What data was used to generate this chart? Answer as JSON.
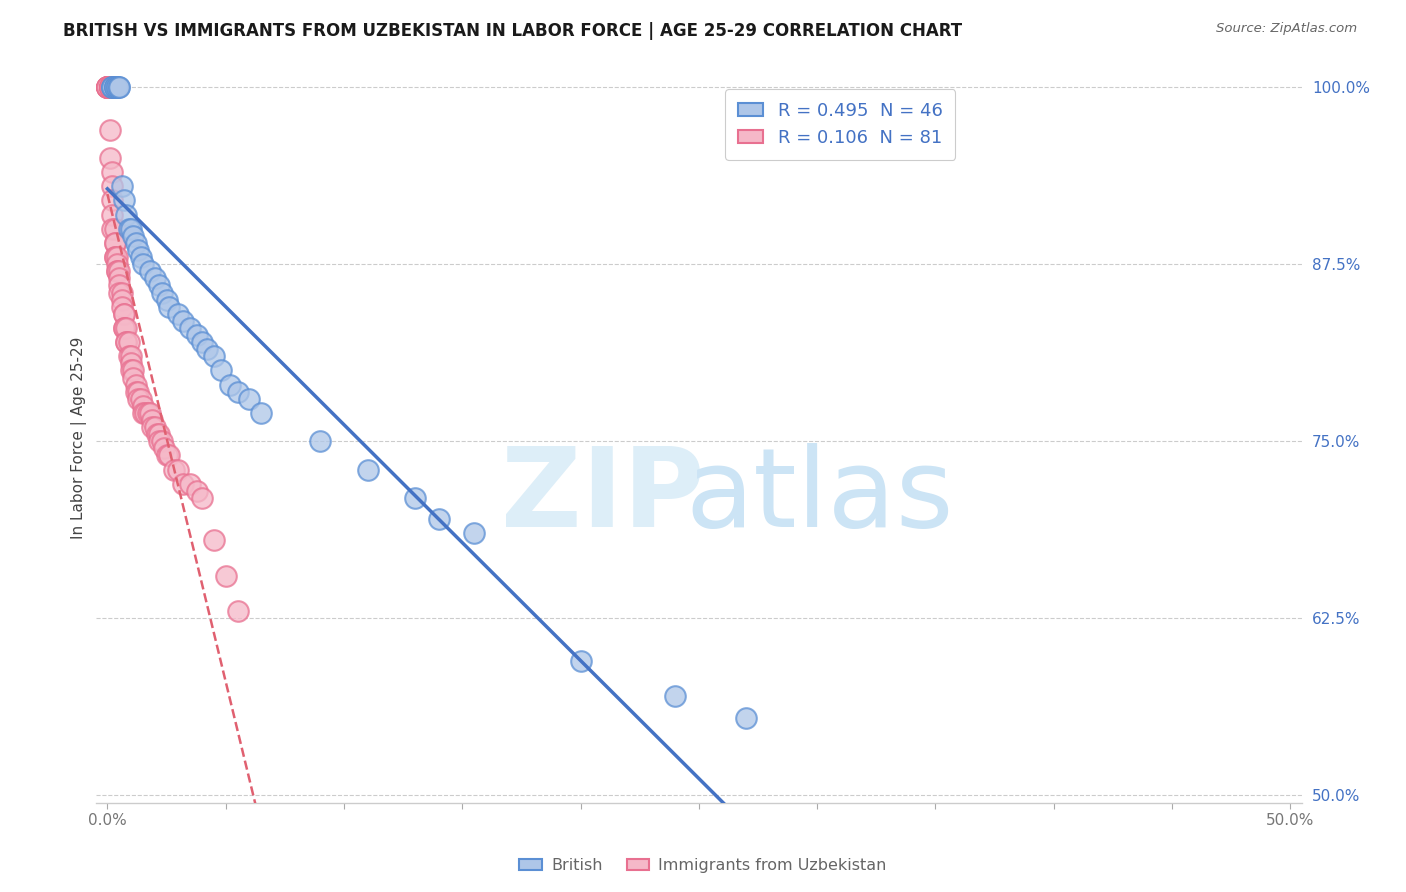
{
  "title": "BRITISH VS IMMIGRANTS FROM UZBEKISTAN IN LABOR FORCE | AGE 25-29 CORRELATION CHART",
  "source": "Source: ZipAtlas.com",
  "ylabel": "In Labor Force | Age 25-29",
  "xlim": [
    -0.005,
    0.505
  ],
  "ylim": [
    0.495,
    1.01
  ],
  "xticks": [
    0.0,
    0.05,
    0.1,
    0.15,
    0.2,
    0.25,
    0.3,
    0.35,
    0.4,
    0.45,
    0.5
  ],
  "xticklabels": [
    "0.0%",
    "",
    "",
    "",
    "",
    "",
    "",
    "",
    "",
    "",
    "50.0%"
  ],
  "yticks": [
    0.5,
    0.625,
    0.75,
    0.875,
    1.0
  ],
  "yticklabels": [
    "50.0%",
    "62.5%",
    "75.0%",
    "87.5%",
    "100.0%"
  ],
  "british_R": 0.495,
  "british_N": 46,
  "uzbekistan_R": 0.106,
  "uzbekistan_N": 81,
  "british_color": "#aec6e8",
  "uzbekistan_color": "#f5b8c8",
  "british_edge_color": "#5b8fd4",
  "uzbekistan_edge_color": "#e87090",
  "british_line_color": "#4472c4",
  "uzbekistan_line_color": "#e06070",
  "british_x": [
    0.002,
    0.002,
    0.002,
    0.003,
    0.003,
    0.003,
    0.004,
    0.004,
    0.005,
    0.005,
    0.006,
    0.007,
    0.008,
    0.009,
    0.01,
    0.011,
    0.012,
    0.013,
    0.014,
    0.015,
    0.018,
    0.02,
    0.022,
    0.023,
    0.025,
    0.026,
    0.03,
    0.032,
    0.035,
    0.038,
    0.04,
    0.042,
    0.045,
    0.048,
    0.052,
    0.055,
    0.06,
    0.065,
    0.09,
    0.11,
    0.13,
    0.14,
    0.155,
    0.2,
    0.24,
    0.27
  ],
  "british_y": [
    1.0,
    1.0,
    1.0,
    1.0,
    1.0,
    1.0,
    1.0,
    1.0,
    1.0,
    1.0,
    0.93,
    0.92,
    0.91,
    0.9,
    0.9,
    0.895,
    0.89,
    0.885,
    0.88,
    0.875,
    0.87,
    0.865,
    0.86,
    0.855,
    0.85,
    0.845,
    0.84,
    0.835,
    0.83,
    0.825,
    0.82,
    0.815,
    0.81,
    0.8,
    0.79,
    0.785,
    0.78,
    0.77,
    0.75,
    0.73,
    0.71,
    0.695,
    0.685,
    0.595,
    0.57,
    0.555
  ],
  "uzbekistan_x": [
    0.0,
    0.0,
    0.0,
    0.0,
    0.0,
    0.0,
    0.0,
    0.0,
    0.001,
    0.001,
    0.001,
    0.001,
    0.001,
    0.001,
    0.001,
    0.001,
    0.001,
    0.002,
    0.002,
    0.002,
    0.002,
    0.002,
    0.003,
    0.003,
    0.003,
    0.003,
    0.003,
    0.004,
    0.004,
    0.004,
    0.004,
    0.005,
    0.005,
    0.005,
    0.005,
    0.006,
    0.006,
    0.006,
    0.007,
    0.007,
    0.007,
    0.007,
    0.008,
    0.008,
    0.008,
    0.009,
    0.009,
    0.01,
    0.01,
    0.01,
    0.011,
    0.011,
    0.012,
    0.012,
    0.013,
    0.013,
    0.014,
    0.015,
    0.015,
    0.016,
    0.017,
    0.018,
    0.019,
    0.019,
    0.02,
    0.021,
    0.022,
    0.022,
    0.023,
    0.024,
    0.025,
    0.026,
    0.028,
    0.03,
    0.032,
    0.035,
    0.038,
    0.04,
    0.045,
    0.05,
    0.055
  ],
  "uzbekistan_y": [
    1.0,
    1.0,
    1.0,
    1.0,
    1.0,
    1.0,
    1.0,
    1.0,
    1.0,
    1.0,
    1.0,
    1.0,
    1.0,
    1.0,
    1.0,
    0.97,
    0.95,
    0.94,
    0.93,
    0.92,
    0.91,
    0.9,
    0.9,
    0.89,
    0.89,
    0.88,
    0.88,
    0.88,
    0.875,
    0.87,
    0.87,
    0.87,
    0.865,
    0.86,
    0.855,
    0.855,
    0.85,
    0.845,
    0.84,
    0.84,
    0.83,
    0.83,
    0.83,
    0.82,
    0.82,
    0.82,
    0.81,
    0.81,
    0.805,
    0.8,
    0.8,
    0.795,
    0.79,
    0.785,
    0.785,
    0.78,
    0.78,
    0.775,
    0.77,
    0.77,
    0.77,
    0.77,
    0.765,
    0.76,
    0.76,
    0.755,
    0.755,
    0.75,
    0.75,
    0.745,
    0.74,
    0.74,
    0.73,
    0.73,
    0.72,
    0.72,
    0.715,
    0.71,
    0.68,
    0.655,
    0.63
  ]
}
